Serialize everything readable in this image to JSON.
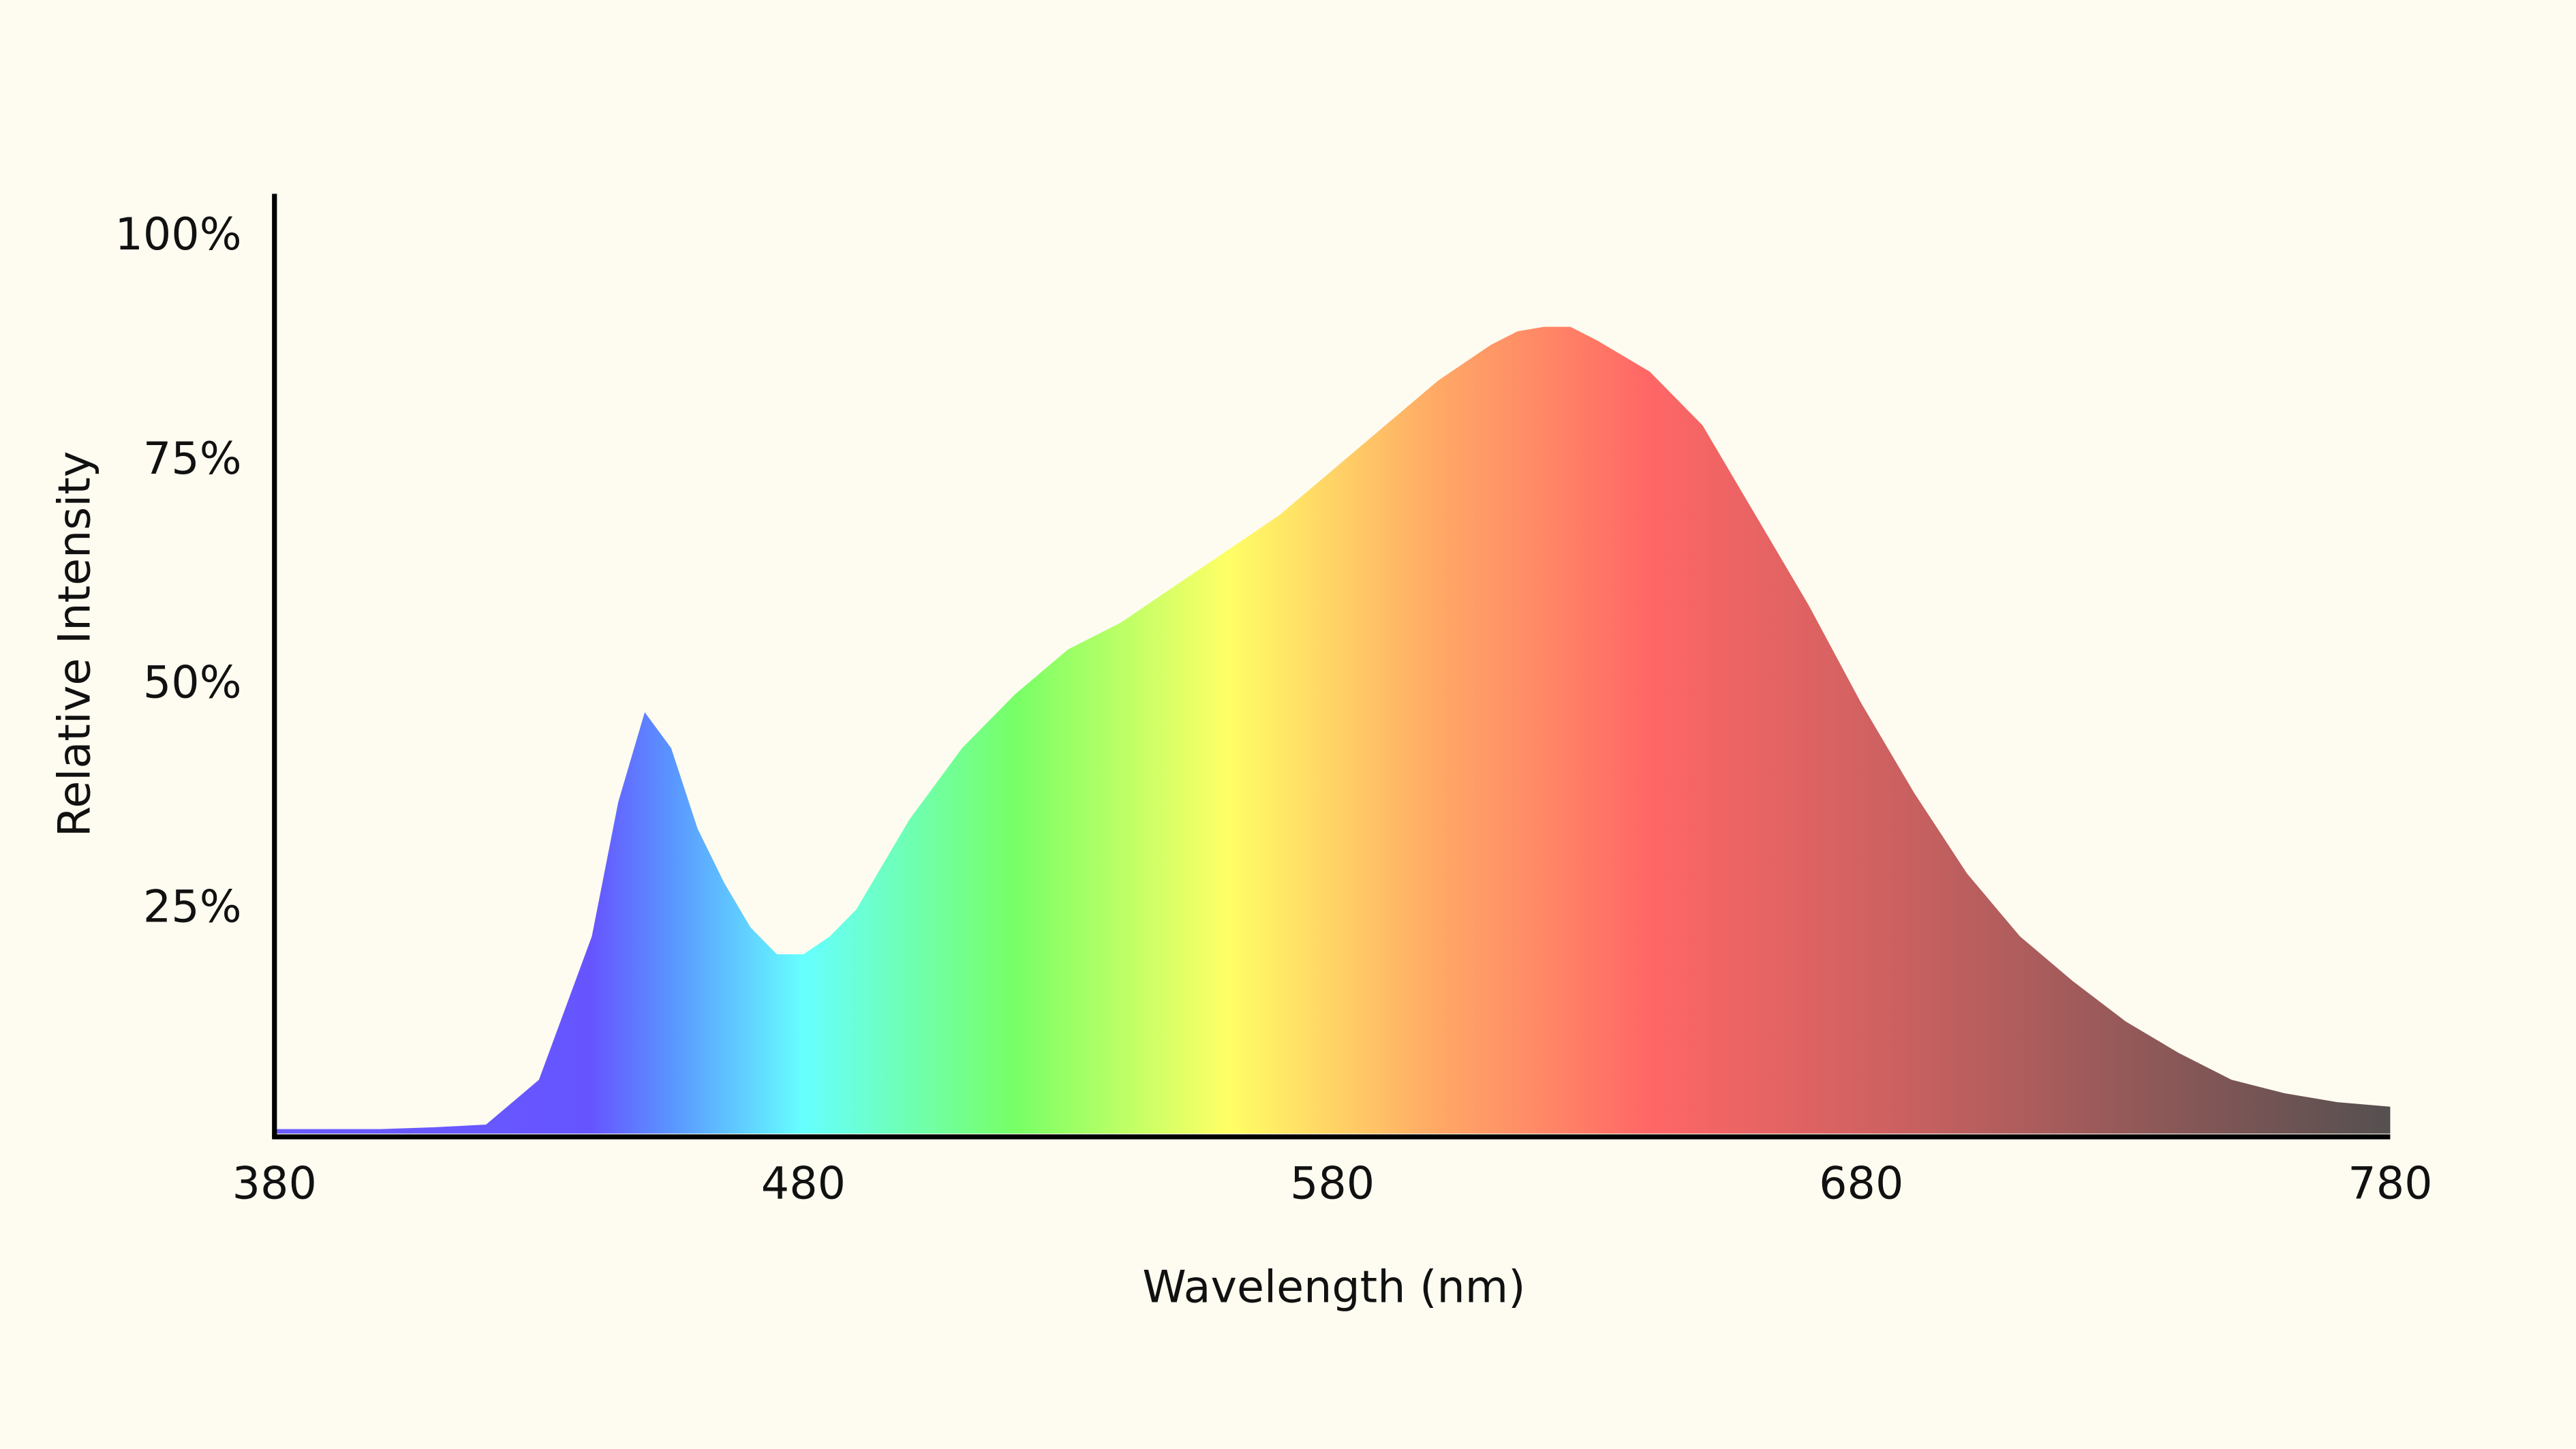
{
  "chart_data": {
    "type": "area",
    "xlabel": "Wavelength (nm)",
    "ylabel": "Relative Intensity",
    "x": [
      380,
      390,
      400,
      410,
      420,
      430,
      440,
      445,
      450,
      455,
      460,
      465,
      470,
      475,
      480,
      485,
      490,
      500,
      510,
      520,
      530,
      540,
      550,
      560,
      570,
      580,
      590,
      600,
      610,
      615,
      620,
      625,
      630,
      640,
      650,
      660,
      670,
      680,
      690,
      700,
      710,
      720,
      730,
      740,
      750,
      760,
      770,
      780
    ],
    "values": [
      0.5,
      0.5,
      0.5,
      0.7,
      1,
      6,
      22,
      37,
      47,
      43,
      34,
      28,
      23,
      20,
      20,
      22,
      25,
      35,
      43,
      49,
      54,
      57,
      61,
      65,
      69,
      74,
      79,
      84,
      88,
      89.5,
      90,
      90,
      88.5,
      85,
      79,
      69,
      59,
      48,
      38,
      29,
      22,
      17,
      12.5,
      9,
      6,
      4.5,
      3.5,
      3
    ],
    "xlim": [
      380,
      780
    ],
    "xticks": [
      380,
      480,
      580,
      680,
      780
    ],
    "ylim": [
      0,
      103
    ],
    "yticks": [
      {
        "value": 25,
        "label": "25%"
      },
      {
        "value": 50,
        "label": "50%"
      },
      {
        "value": 75,
        "label": "75%"
      },
      {
        "value": 100,
        "label": "100%"
      }
    ],
    "grid": false,
    "gradient": [
      {
        "x": 380,
        "color": "#6a5cff"
      },
      {
        "x": 440,
        "color": "#6655ff"
      },
      {
        "x": 455,
        "color": "#5a95ff"
      },
      {
        "x": 480,
        "color": "#66ffff"
      },
      {
        "x": 520,
        "color": "#77ff66"
      },
      {
        "x": 560,
        "color": "#ffff66"
      },
      {
        "x": 600,
        "color": "#ffa866"
      },
      {
        "x": 640,
        "color": "#ff6666"
      },
      {
        "x": 690,
        "color": "#c86060"
      },
      {
        "x": 780,
        "color": "#555050"
      }
    ]
  }
}
